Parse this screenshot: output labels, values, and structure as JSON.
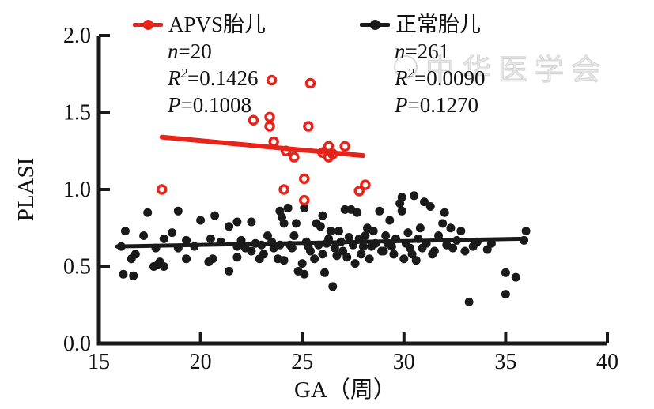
{
  "watermark": {
    "text": "中华医学会"
  },
  "legend": [
    {
      "title": "APVS胎儿",
      "color": "#e8231a",
      "n_prefix": "n",
      "n_value": "=20",
      "r_prefix": "R",
      "r_sup": "2",
      "r_value": "=0.1426",
      "p_prefix": "P",
      "p_value": "=0.1008"
    },
    {
      "title": "正常胎儿",
      "color": "#1a1a1a",
      "n_prefix": "n",
      "n_value": "=261",
      "r_prefix": "R",
      "r_sup": "2",
      "r_value": "=0.0090",
      "p_prefix": "P",
      "p_value": "=0.1270"
    }
  ],
  "chart_data": {
    "type": "scatter",
    "title": "",
    "xlabel": "GA（周）",
    "ylabel": "PLASI",
    "xlim": [
      15,
      40
    ],
    "ylim": [
      0.0,
      2.0
    ],
    "x_ticks": [
      "15",
      "20",
      "25",
      "30",
      "35",
      "40"
    ],
    "y_ticks": [
      "0.0",
      "0.5",
      "1.0",
      "1.5",
      "2.0"
    ],
    "grid": false,
    "legend_position": "top",
    "series": [
      {
        "name": "正常胎儿",
        "marker": "filled-circle",
        "color": "#1a1a1a",
        "n": 261,
        "r_squared": 0.009,
        "p_value": 0.127,
        "trend_line": {
          "x1": 15.9,
          "y1": 0.63,
          "x2": 35.9,
          "y2": 0.68
        },
        "points": [
          [
            16.1,
            0.63
          ],
          [
            16.2,
            0.45
          ],
          [
            16.3,
            0.73
          ],
          [
            16.6,
            0.55
          ],
          [
            16.7,
            0.44
          ],
          [
            16.8,
            0.58
          ],
          [
            17.2,
            0.7
          ],
          [
            17.4,
            0.85
          ],
          [
            17.7,
            0.5
          ],
          [
            17.8,
            0.62
          ],
          [
            17.9,
            0.51
          ],
          [
            18.0,
            0.53
          ],
          [
            18.2,
            0.68
          ],
          [
            18.2,
            0.5
          ],
          [
            18.6,
            0.72
          ],
          [
            18.9,
            0.86
          ],
          [
            18.9,
            0.62
          ],
          [
            19.3,
            0.67
          ],
          [
            19.3,
            0.55
          ],
          [
            19.7,
            0.63
          ],
          [
            20.0,
            0.8
          ],
          [
            20.4,
            0.53
          ],
          [
            20.5,
            0.68
          ],
          [
            20.6,
            0.55
          ],
          [
            20.7,
            0.83
          ],
          [
            21.0,
            0.66
          ],
          [
            21.4,
            0.76
          ],
          [
            21.4,
            0.47
          ],
          [
            21.8,
            0.79
          ],
          [
            21.8,
            0.63
          ],
          [
            21.8,
            0.56
          ],
          [
            22.0,
            0.67
          ],
          [
            22.2,
            0.62
          ],
          [
            22.5,
            0.79
          ],
          [
            22.5,
            0.6
          ],
          [
            22.7,
            0.65
          ],
          [
            22.9,
            0.55
          ],
          [
            23.0,
            0.64
          ],
          [
            23.1,
            0.58
          ],
          [
            23.3,
            0.7
          ],
          [
            23.5,
            0.66
          ],
          [
            23.6,
            0.62
          ],
          [
            23.8,
            0.55
          ],
          [
            23.9,
            0.86
          ],
          [
            23.9,
            0.64
          ],
          [
            24.0,
            0.82
          ],
          [
            24.1,
            0.78
          ],
          [
            24.1,
            0.54
          ],
          [
            24.3,
            0.88
          ],
          [
            24.4,
            0.64
          ],
          [
            24.5,
            0.62
          ],
          [
            24.6,
            0.7
          ],
          [
            24.7,
            0.78
          ],
          [
            24.8,
            0.47
          ],
          [
            25.0,
            0.52
          ],
          [
            25.1,
            0.88
          ],
          [
            25.1,
            0.45
          ],
          [
            25.2,
            0.66
          ],
          [
            25.3,
            0.63
          ],
          [
            25.4,
            0.6
          ],
          [
            25.6,
            0.55
          ],
          [
            25.7,
            0.78
          ],
          [
            25.8,
            0.64
          ],
          [
            25.9,
            0.76
          ],
          [
            26.0,
            0.83
          ],
          [
            26.0,
            0.58
          ],
          [
            26.1,
            0.46
          ],
          [
            26.2,
            0.65
          ],
          [
            26.3,
            0.68
          ],
          [
            26.4,
            0.73
          ],
          [
            26.5,
            0.37
          ],
          [
            26.6,
            0.62
          ],
          [
            26.7,
            0.57
          ],
          [
            26.8,
            0.73
          ],
          [
            26.9,
            0.66
          ],
          [
            27.0,
            0.6
          ],
          [
            27.1,
            0.87
          ],
          [
            27.2,
            0.56
          ],
          [
            27.3,
            0.69
          ],
          [
            27.4,
            0.87
          ],
          [
            27.5,
            0.64
          ],
          [
            27.6,
            0.52
          ],
          [
            27.7,
            0.85
          ],
          [
            27.8,
            0.68
          ],
          [
            27.9,
            0.58
          ],
          [
            28.0,
            0.63
          ],
          [
            28.1,
            0.7
          ],
          [
            28.2,
            0.75
          ],
          [
            28.3,
            0.55
          ],
          [
            28.4,
            0.63
          ],
          [
            28.5,
            0.73
          ],
          [
            28.6,
            0.65
          ],
          [
            28.8,
            0.86
          ],
          [
            28.9,
            0.6
          ],
          [
            29.0,
            0.6
          ],
          [
            29.1,
            0.7
          ],
          [
            29.2,
            0.65
          ],
          [
            29.3,
            0.8
          ],
          [
            29.4,
            0.63
          ],
          [
            29.5,
            0.58
          ],
          [
            29.6,
            0.68
          ],
          [
            29.8,
            0.91
          ],
          [
            29.9,
            0.95
          ],
          [
            29.9,
            0.86
          ],
          [
            30.0,
            0.55
          ],
          [
            30.1,
            0.65
          ],
          [
            30.2,
            0.72
          ],
          [
            30.3,
            0.62
          ],
          [
            30.4,
            0.58
          ],
          [
            30.5,
            0.96
          ],
          [
            30.6,
            0.54
          ],
          [
            30.7,
            0.68
          ],
          [
            30.8,
            0.75
          ],
          [
            30.9,
            0.62
          ],
          [
            31.0,
            0.92
          ],
          [
            31.1,
            0.65
          ],
          [
            31.3,
            0.89
          ],
          [
            31.4,
            0.58
          ],
          [
            31.5,
            0.6
          ],
          [
            31.7,
            0.7
          ],
          [
            31.9,
            0.78
          ],
          [
            32.0,
            0.85
          ],
          [
            32.1,
            0.64
          ],
          [
            32.3,
            0.75
          ],
          [
            32.4,
            0.62
          ],
          [
            32.6,
            0.67
          ],
          [
            32.8,
            0.73
          ],
          [
            33.0,
            0.6
          ],
          [
            33.2,
            0.27
          ],
          [
            33.4,
            0.63
          ],
          [
            33.6,
            0.66
          ],
          [
            34.1,
            0.61
          ],
          [
            34.3,
            0.65
          ],
          [
            35.0,
            0.46
          ],
          [
            35.0,
            0.32
          ],
          [
            35.5,
            0.43
          ],
          [
            35.9,
            0.67
          ],
          [
            36.0,
            0.73
          ]
        ]
      },
      {
        "name": "APVS胎儿",
        "marker": "open-circle",
        "color": "#e8231a",
        "n": 20,
        "r_squared": 0.1426,
        "p_value": 0.1008,
        "trend_line": {
          "x1": 18.1,
          "y1": 1.34,
          "x2": 28.0,
          "y2": 1.22
        },
        "points": [
          [
            18.1,
            1.0
          ],
          [
            22.6,
            1.45
          ],
          [
            23.4,
            1.47
          ],
          [
            23.5,
            1.71
          ],
          [
            23.4,
            1.41
          ],
          [
            23.6,
            1.31
          ],
          [
            24.2,
            1.25
          ],
          [
            24.6,
            1.21
          ],
          [
            24.1,
            1.0
          ],
          [
            25.1,
            1.07
          ],
          [
            25.1,
            0.93
          ],
          [
            25.4,
            1.69
          ],
          [
            25.3,
            1.41
          ],
          [
            26.0,
            1.24
          ],
          [
            26.3,
            1.28
          ],
          [
            26.3,
            1.21
          ],
          [
            26.5,
            1.23
          ],
          [
            27.1,
            1.28
          ],
          [
            27.8,
            0.99
          ],
          [
            28.1,
            1.03
          ]
        ]
      }
    ]
  }
}
